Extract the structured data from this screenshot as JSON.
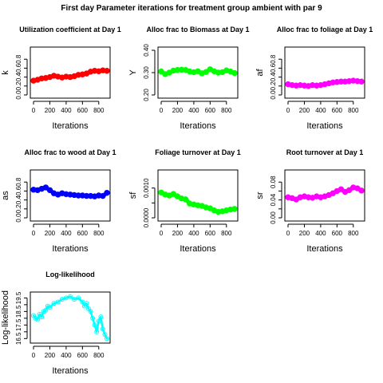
{
  "page_title": "First day Parameter iterations for treatment group ambient with par 9",
  "chart_data": [
    {
      "type": "scatter",
      "title": "Utilization coefficient at Day 1",
      "xlabel": "Iterations",
      "ylabel": "k",
      "color": "#ff0000",
      "xlim": [
        0,
        900
      ],
      "ylim": [
        0,
        1
      ],
      "xticks": [
        0,
        200,
        400,
        600,
        800
      ],
      "yticks": [
        0.0,
        0.2,
        0.4,
        0.6,
        0.8
      ],
      "ytick_labels": [
        "0.0",
        "0.2",
        "0.4",
        "0.6",
        "0.8"
      ],
      "x": [
        0,
        50,
        100,
        150,
        200,
        250,
        300,
        350,
        400,
        450,
        500,
        550,
        600,
        650,
        700,
        750,
        800,
        850,
        900
      ],
      "y": [
        0.32,
        0.34,
        0.37,
        0.38,
        0.4,
        0.43,
        0.41,
        0.39,
        0.41,
        0.4,
        0.42,
        0.45,
        0.46,
        0.48,
        0.52,
        0.54,
        0.53,
        0.55,
        0.54
      ]
    },
    {
      "type": "scatter",
      "title": "Alloc frac to Biomass at Day 1",
      "xlabel": "Iterations",
      "ylabel": "Y",
      "color": "#00ff00",
      "xlim": [
        0,
        900
      ],
      "ylim": [
        0.2,
        0.4
      ],
      "xticks": [
        0,
        200,
        400,
        600,
        800
      ],
      "yticks": [
        0.2,
        0.3,
        0.4
      ],
      "ytick_labels": [
        "0.20",
        "0.30",
        "0.40"
      ],
      "x": [
        0,
        50,
        100,
        150,
        200,
        250,
        300,
        350,
        400,
        450,
        500,
        550,
        600,
        650,
        700,
        750,
        800,
        850,
        900
      ],
      "y": [
        0.305,
        0.293,
        0.3,
        0.309,
        0.312,
        0.313,
        0.312,
        0.305,
        0.302,
        0.306,
        0.297,
        0.303,
        0.315,
        0.306,
        0.3,
        0.302,
        0.31,
        0.305,
        0.298
      ]
    },
    {
      "type": "scatter",
      "title": "Alloc frac to foliage at Day 1",
      "xlabel": "Iterations",
      "ylabel": "af",
      "color": "#ff00ff",
      "xlim": [
        0,
        900
      ],
      "ylim": [
        0,
        1
      ],
      "xticks": [
        0,
        200,
        400,
        600,
        800
      ],
      "yticks": [
        0.0,
        0.2,
        0.4,
        0.6,
        0.8
      ],
      "ytick_labels": [
        "0.0",
        "0.2",
        "0.4",
        "0.6",
        "0.8"
      ],
      "x": [
        0,
        50,
        100,
        150,
        200,
        250,
        300,
        350,
        400,
        450,
        500,
        550,
        600,
        650,
        700,
        750,
        800,
        850,
        900
      ],
      "y": [
        0.24,
        0.22,
        0.21,
        0.22,
        0.21,
        0.2,
        0.22,
        0.21,
        0.22,
        0.24,
        0.26,
        0.28,
        0.29,
        0.3,
        0.3,
        0.31,
        0.32,
        0.31,
        0.3
      ]
    },
    {
      "type": "scatter",
      "title": "Alloc frac to wood at Day 1",
      "xlabel": "Iterations",
      "ylabel": "as",
      "color": "#0000ff",
      "xlim": [
        0,
        900
      ],
      "ylim": [
        0,
        1
      ],
      "xticks": [
        0,
        200,
        400,
        600,
        800
      ],
      "yticks": [
        0.0,
        0.2,
        0.4,
        0.6,
        0.8
      ],
      "ytick_labels": [
        "0.0",
        "0.2",
        "0.4",
        "0.6",
        "0.8"
      ],
      "x": [
        0,
        50,
        100,
        150,
        200,
        250,
        300,
        350,
        400,
        450,
        500,
        550,
        600,
        650,
        700,
        750,
        800,
        850,
        900
      ],
      "y": [
        0.63,
        0.62,
        0.65,
        0.68,
        0.62,
        0.55,
        0.52,
        0.55,
        0.53,
        0.52,
        0.51,
        0.5,
        0.5,
        0.49,
        0.49,
        0.48,
        0.5,
        0.49,
        0.56
      ]
    },
    {
      "type": "scatter",
      "title": "Foliage turnover at Day 1",
      "xlabel": "Iterations",
      "ylabel": "sf",
      "color": "#00ff00",
      "xlim": [
        0,
        900
      ],
      "ylim": [
        0,
        0.0015
      ],
      "xticks": [
        0,
        200,
        400,
        600,
        800
      ],
      "yticks": [
        0.0,
        0.0005,
        0.001
      ],
      "ytick_labels": [
        "0.0000",
        "",
        "0.0010"
      ],
      "x": [
        0,
        50,
        100,
        150,
        200,
        250,
        300,
        350,
        400,
        450,
        500,
        550,
        600,
        650,
        700,
        750,
        800,
        850,
        900
      ],
      "y": [
        0.00085,
        0.00078,
        0.00075,
        0.0008,
        0.00072,
        0.00065,
        0.00062,
        0.00048,
        0.00045,
        0.00042,
        0.0004,
        0.00035,
        0.00032,
        0.00025,
        0.0002,
        0.00022,
        0.00025,
        0.00028,
        0.0003
      ]
    },
    {
      "type": "scatter",
      "title": "Root turnover at Day 1",
      "xlabel": "Iterations",
      "ylabel": "sr",
      "color": "#ff00ff",
      "xlim": [
        0,
        900
      ],
      "ylim": [
        0,
        0.1
      ],
      "xticks": [
        0,
        200,
        400,
        600,
        800
      ],
      "yticks": [
        0.0,
        0.02,
        0.04,
        0.06,
        0.08
      ],
      "ytick_labels": [
        "0.00",
        "",
        "0.04",
        "",
        "0.08"
      ],
      "x": [
        0,
        50,
        100,
        150,
        200,
        250,
        300,
        350,
        400,
        450,
        500,
        550,
        600,
        650,
        700,
        750,
        800,
        850,
        900
      ],
      "y": [
        0.046,
        0.044,
        0.041,
        0.046,
        0.048,
        0.046,
        0.045,
        0.048,
        0.046,
        0.048,
        0.051,
        0.055,
        0.06,
        0.064,
        0.058,
        0.062,
        0.068,
        0.066,
        0.061
      ]
    },
    {
      "type": "scatter",
      "title": "Log-likelihood",
      "xlabel": "Iterations",
      "ylabel": "Log-likelihood",
      "color": "#00ffff",
      "xlim": [
        0,
        900
      ],
      "ylim": [
        16.4,
        19.7
      ],
      "xticks": [
        0,
        200,
        400,
        600,
        800
      ],
      "yticks": [
        16.5,
        17.0,
        17.5,
        18.0,
        18.5,
        19.0,
        19.5
      ],
      "ytick_labels": [
        "16.5",
        "",
        "17.5",
        "",
        "18.5",
        "",
        "19.5"
      ],
      "x": [
        0,
        25,
        50,
        75,
        100,
        125,
        150,
        175,
        200,
        250,
        300,
        350,
        400,
        450,
        500,
        550,
        600,
        625,
        650,
        675,
        700,
        725,
        750,
        775,
        800,
        825,
        850,
        875,
        900
      ],
      "y": [
        18.2,
        18.0,
        17.9,
        18.3,
        18.1,
        18.5,
        18.6,
        18.9,
        18.8,
        19.1,
        19.2,
        19.4,
        19.5,
        19.6,
        19.4,
        19.5,
        19.2,
        18.9,
        19.1,
        18.7,
        18.5,
        18.0,
        17.5,
        17.0,
        17.8,
        18.1,
        17.2,
        16.8,
        16.5
      ]
    }
  ]
}
